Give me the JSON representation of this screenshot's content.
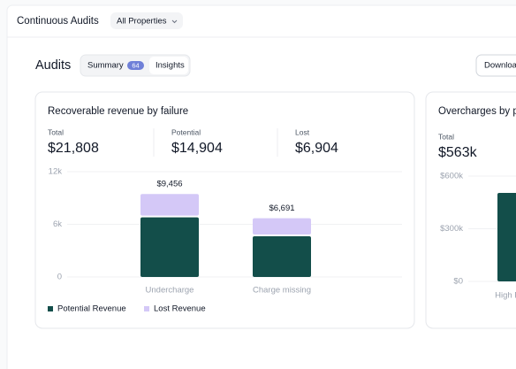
{
  "header": {
    "title": "Continuous Audits",
    "filter": "All Properties"
  },
  "page": {
    "title": "Audits",
    "tabs": [
      {
        "label": "Summary",
        "badge": "64"
      },
      {
        "label": "Insights"
      }
    ],
    "download": "Downloa"
  },
  "chart_data": [
    {
      "type": "bar",
      "stacked": true,
      "title": "Recoverable revenue by failure",
      "stats": [
        {
          "label": "Total",
          "value": "$21,808"
        },
        {
          "label": "Potential",
          "value": "$14,904"
        },
        {
          "label": "Lost",
          "value": "$6,904"
        }
      ],
      "categories": [
        "Undercharge",
        "Charge missing"
      ],
      "series": [
        {
          "name": "Potential Revenue",
          "color": "#134e4a",
          "values": [
            6800,
            4640
          ]
        },
        {
          "name": "Lost Revenue",
          "color": "#d4c8f7",
          "values": [
            2656,
            2051
          ]
        }
      ],
      "total_labels": [
        "$9,456",
        "$6,691"
      ],
      "ylim": [
        0,
        12000
      ],
      "yticks": [
        0,
        {
          "value": 6000,
          "label": "6k"
        },
        {
          "value": 12000,
          "label": "12k"
        }
      ],
      "grid": true
    },
    {
      "type": "bar",
      "title": "Overcharges by p",
      "stats": [
        {
          "label": "Total",
          "value": "$563k"
        }
      ],
      "categories": [
        "High Pri"
      ],
      "series": [
        {
          "color": "#134e4a",
          "values": [
            504000
          ]
        }
      ],
      "ylim": [
        0,
        600000
      ],
      "yticks": [
        {
          "value": 0,
          "label": "$0"
        },
        {
          "value": 300000,
          "label": "$300k"
        },
        {
          "value": 600000,
          "label": "$600k"
        }
      ],
      "grid": true
    }
  ]
}
